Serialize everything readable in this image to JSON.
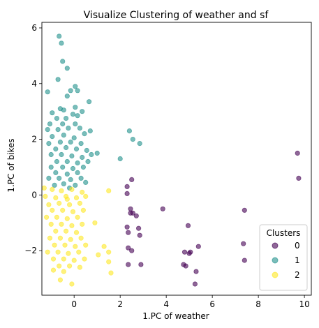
{
  "chart_data": {
    "type": "scatter",
    "title": "Visualize Clustering of weather and sf",
    "xlabel": "1.PC of weather",
    "ylabel": "1.PC of bikes",
    "xlim": [
      -1.4,
      10.3
    ],
    "ylim": [
      -3.6,
      6.2
    ],
    "xticks": [
      0,
      2,
      4,
      6,
      8,
      10
    ],
    "yticks": [
      -2,
      0,
      2,
      4,
      6
    ],
    "grid": false,
    "legend": {
      "title": "Clusters",
      "placement": "lower-right"
    },
    "series": [
      {
        "name": "0",
        "color": "#440154",
        "points": [
          [
            9.7,
            1.5
          ],
          [
            9.75,
            0.6
          ],
          [
            7.4,
            -0.55
          ],
          [
            7.35,
            -1.75
          ],
          [
            7.4,
            -2.35
          ],
          [
            3.85,
            -0.5
          ],
          [
            4.95,
            -1.1
          ],
          [
            5.4,
            -1.85
          ],
          [
            5.05,
            -2.05
          ],
          [
            5.0,
            -2.1
          ],
          [
            4.8,
            -2.05
          ],
          [
            4.75,
            -2.5
          ],
          [
            4.85,
            -2.55
          ],
          [
            5.3,
            -2.75
          ],
          [
            5.25,
            -3.2
          ],
          [
            2.5,
            0.55
          ],
          [
            2.3,
            0.3
          ],
          [
            2.3,
            0.05
          ],
          [
            2.45,
            -0.5
          ],
          [
            2.45,
            -0.65
          ],
          [
            2.55,
            -0.65
          ],
          [
            2.7,
            -0.75
          ],
          [
            2.8,
            -1.2
          ],
          [
            2.85,
            -1.45
          ],
          [
            2.3,
            -1.15
          ],
          [
            2.35,
            -1.35
          ],
          [
            2.35,
            -1.9
          ],
          [
            2.5,
            -2.0
          ],
          [
            2.35,
            -2.5
          ],
          [
            2.9,
            -2.5
          ]
        ]
      },
      {
        "name": "1",
        "color": "#21918c",
        "points": [
          [
            -0.65,
            5.7
          ],
          [
            -0.55,
            5.45
          ],
          [
            -0.5,
            4.8
          ],
          [
            -0.3,
            4.55
          ],
          [
            -0.7,
            4.15
          ],
          [
            -1.15,
            3.7
          ],
          [
            -0.15,
            3.75
          ],
          [
            0.05,
            3.9
          ],
          [
            0.15,
            3.75
          ],
          [
            -0.3,
            3.55
          ],
          [
            0.65,
            3.35
          ],
          [
            -0.6,
            3.1
          ],
          [
            -0.45,
            3.05
          ],
          [
            0.05,
            3.15
          ],
          [
            -0.95,
            2.95
          ],
          [
            -0.05,
            2.9
          ],
          [
            0.35,
            3.0
          ],
          [
            -0.75,
            2.75
          ],
          [
            -0.35,
            2.75
          ],
          [
            0.15,
            2.85
          ],
          [
            -1.05,
            2.55
          ],
          [
            -0.5,
            2.55
          ],
          [
            0.05,
            2.55
          ],
          [
            -1.15,
            2.35
          ],
          [
            -0.7,
            2.35
          ],
          [
            -0.25,
            2.4
          ],
          [
            0.25,
            2.4
          ],
          [
            0.7,
            2.3
          ],
          [
            2.4,
            2.3
          ],
          [
            -0.95,
            2.1
          ],
          [
            -0.45,
            2.15
          ],
          [
            0.0,
            2.05
          ],
          [
            0.45,
            2.2
          ],
          [
            2.55,
            2.0
          ],
          [
            -1.1,
            1.85
          ],
          [
            -0.6,
            1.9
          ],
          [
            -0.15,
            1.9
          ],
          [
            0.3,
            1.85
          ],
          [
            2.85,
            1.85
          ],
          [
            -0.8,
            1.65
          ],
          [
            -0.35,
            1.7
          ],
          [
            0.1,
            1.65
          ],
          [
            0.55,
            1.6
          ],
          [
            1.0,
            1.5
          ],
          [
            -1.0,
            1.45
          ],
          [
            -0.55,
            1.45
          ],
          [
            -0.1,
            1.4
          ],
          [
            0.35,
            1.35
          ],
          [
            0.75,
            1.45
          ],
          [
            2.0,
            1.3
          ],
          [
            -0.75,
            1.2
          ],
          [
            -0.3,
            1.2
          ],
          [
            0.15,
            1.15
          ],
          [
            0.6,
            1.2
          ],
          [
            -1.0,
            1.0
          ],
          [
            -0.5,
            1.0
          ],
          [
            -0.05,
            0.95
          ],
          [
            0.4,
            1.0
          ],
          [
            -0.8,
            0.8
          ],
          [
            -0.3,
            0.75
          ],
          [
            0.15,
            0.8
          ],
          [
            -1.1,
            0.6
          ],
          [
            -0.65,
            0.6
          ],
          [
            -0.15,
            0.55
          ],
          [
            0.3,
            0.6
          ],
          [
            -0.45,
            0.4
          ],
          [
            0.05,
            0.35
          ],
          [
            -0.85,
            0.35
          ],
          [
            0.5,
            0.45
          ],
          [
            -0.2,
            0.25
          ]
        ]
      },
      {
        "name": "2",
        "color": "#fde725",
        "points": [
          [
            -1.3,
            0.25
          ],
          [
            -0.95,
            0.2
          ],
          [
            -0.55,
            0.15
          ],
          [
            -0.1,
            0.2
          ],
          [
            0.35,
            0.1
          ],
          [
            1.5,
            0.15
          ],
          [
            -1.25,
            -0.05
          ],
          [
            -0.8,
            -0.1
          ],
          [
            -0.35,
            -0.05
          ],
          [
            0.1,
            -0.1
          ],
          [
            0.5,
            -0.05
          ],
          [
            -1.1,
            -0.35
          ],
          [
            -0.65,
            -0.3
          ],
          [
            -0.2,
            -0.35
          ],
          [
            0.25,
            -0.3
          ],
          [
            -0.95,
            -0.55
          ],
          [
            -0.5,
            -0.55
          ],
          [
            -0.05,
            -0.6
          ],
          [
            0.4,
            -0.55
          ],
          [
            -1.2,
            -0.8
          ],
          [
            -0.75,
            -0.8
          ],
          [
            -0.3,
            -0.85
          ],
          [
            0.15,
            -0.8
          ],
          [
            -1.0,
            -1.05
          ],
          [
            -0.55,
            -1.05
          ],
          [
            -0.1,
            -1.1
          ],
          [
            0.35,
            -1.05
          ],
          [
            -0.8,
            -1.3
          ],
          [
            -0.35,
            -1.3
          ],
          [
            0.1,
            -1.35
          ],
          [
            -1.05,
            -1.55
          ],
          [
            -0.6,
            -1.55
          ],
          [
            -0.15,
            -1.6
          ],
          [
            0.3,
            -1.55
          ],
          [
            -0.85,
            -1.8
          ],
          [
            -0.4,
            -1.8
          ],
          [
            0.05,
            -1.85
          ],
          [
            0.5,
            -1.8
          ],
          [
            1.3,
            -1.85
          ],
          [
            -1.15,
            -2.05
          ],
          [
            -0.7,
            -2.05
          ],
          [
            -0.25,
            -2.1
          ],
          [
            0.2,
            -2.05
          ],
          [
            1.5,
            -2.05
          ],
          [
            -0.9,
            -2.3
          ],
          [
            -0.45,
            -2.3
          ],
          [
            0.0,
            -2.35
          ],
          [
            0.45,
            -2.3
          ],
          [
            1.5,
            -2.4
          ],
          [
            -0.65,
            -2.55
          ],
          [
            -0.2,
            -2.55
          ],
          [
            0.25,
            -2.6
          ],
          [
            -0.9,
            -2.7
          ],
          [
            -0.45,
            -2.75
          ],
          [
            1.6,
            -2.8
          ],
          [
            -0.6,
            -3.05
          ],
          [
            -0.1,
            -3.2
          ],
          [
            1.05,
            -2.15
          ],
          [
            0.9,
            -1.0
          ],
          [
            -0.3,
            -0.15
          ]
        ]
      }
    ]
  }
}
